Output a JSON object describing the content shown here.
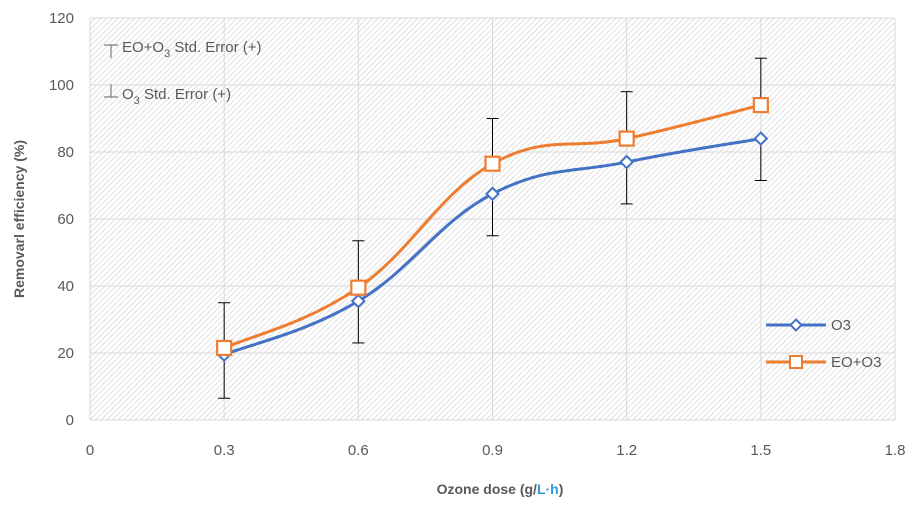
{
  "chart_data": {
    "type": "line",
    "title": "",
    "xlabel": "Ozone dose (g/L·h)",
    "xlabel_parts": {
      "before": "Ozone dose (g/",
      "accent": "L·h",
      "after": ")"
    },
    "ylabel": "Removarl efficiency (%)",
    "xlim": [
      0,
      1.8
    ],
    "ylim": [
      0,
      120
    ],
    "xticks": [
      "0",
      "0.3",
      "0.6",
      "0.9",
      "1.2",
      "1.5",
      "1.8"
    ],
    "yticks": [
      "0",
      "20",
      "40",
      "60",
      "80",
      "100",
      "120"
    ],
    "x": [
      0.3,
      0.6,
      0.9,
      1.2,
      1.5
    ],
    "series": [
      {
        "name": "O3",
        "values": [
          19.5,
          35.5,
          67.5,
          77,
          84
        ],
        "error_minus": [
          13,
          12.5,
          12.5,
          12.5,
          12.5
        ],
        "color": "#4472C4",
        "marker": "diamond"
      },
      {
        "name": "EO+O3",
        "values": [
          21.5,
          39.5,
          76.5,
          84,
          94
        ],
        "error_plus": [
          13.5,
          14,
          13.5,
          14,
          14
        ],
        "color": "#ED7D31",
        "marker": "square"
      }
    ],
    "grid": true,
    "legend": "bottom-right",
    "annotations": [
      {
        "prefix": "EO+O",
        "sub": "3",
        "suffix": " Std. Error (+)"
      },
      {
        "prefix": "O",
        "sub": "3",
        "suffix": " Std. Error (+)"
      }
    ]
  }
}
